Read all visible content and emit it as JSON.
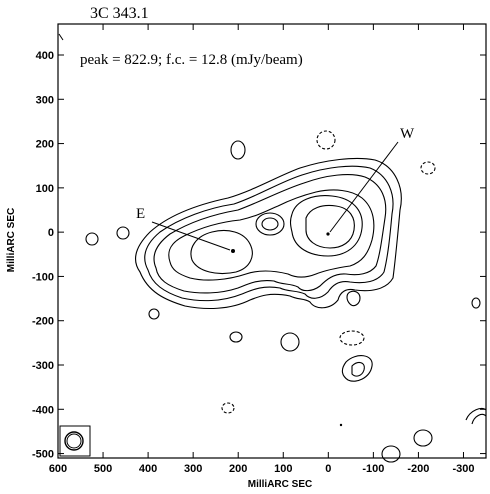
{
  "figure": {
    "source_name": "3C 343.1",
    "annotation": "peak = 822.9; f.c. = 12.8  (mJy/beam)",
    "component_labels": [
      "E",
      "W"
    ]
  },
  "axes": {
    "xlabel": "MilliARC SEC",
    "ylabel": "MilliARC SEC",
    "xlim": [
      600,
      -350
    ],
    "ylim": [
      -510,
      470
    ],
    "x_ticks": [
      600,
      500,
      400,
      300,
      200,
      100,
      0,
      -100,
      -200,
      -300
    ],
    "y_ticks": [
      400,
      300,
      200,
      100,
      0,
      -100,
      -200,
      -300,
      -400,
      -500
    ],
    "x_tick_labels": [
      "600",
      "500",
      "400",
      "300",
      "200",
      "100",
      "0",
      "-100",
      "-200",
      "-300"
    ],
    "y_tick_labels": [
      "400",
      "300",
      "200",
      "100",
      "0",
      "-100",
      "-200",
      "-300",
      "-400",
      "-500"
    ]
  },
  "colors": {
    "ink": "#000000",
    "background": "#ffffff"
  }
}
